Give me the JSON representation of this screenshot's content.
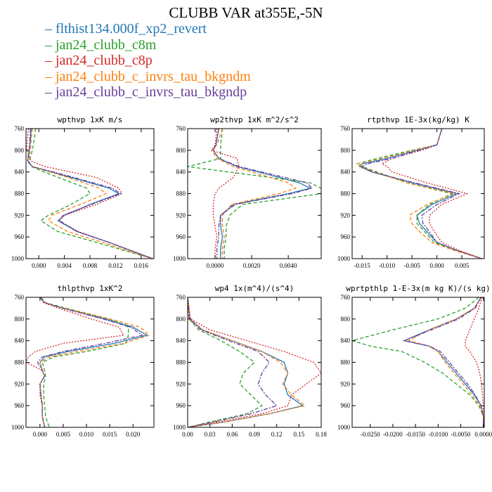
{
  "title": "CLUBB VAR at355E,-5N",
  "legend": [
    {
      "label": "flthist134.000f_xp2_revert",
      "color": "#1f77b4",
      "dash": "solid"
    },
    {
      "label": "jan24_clubb_c8m",
      "color": "#2ca02c",
      "dash": "dashed"
    },
    {
      "label": "jan24_clubb_c8p",
      "color": "#d62728",
      "dash": "dotted"
    },
    {
      "label": "jan24_clubb_c_invrs_tau_bkgndm",
      "color": "#ff7f0e",
      "dash": "dashed"
    },
    {
      "label": "jan24_clubb_c_invrs_tau_bkgndp",
      "color": "#6a3d9a",
      "dash": "dashdot"
    }
  ],
  "chart_data": [
    {
      "type": "line",
      "title": "wpthvp  1xK m/s",
      "xlim": [
        -0.002,
        0.018
      ],
      "ylim": [
        760,
        1000
      ],
      "y_inverted": true,
      "xticks": [
        "0.000",
        "0.004",
        "0.008",
        "0.012",
        "0.016"
      ],
      "xtick_values": [
        0,
        0.004,
        0.008,
        0.012,
        0.016
      ],
      "yticks": [
        760,
        800,
        840,
        880,
        920,
        960,
        1000
      ],
      "y": [
        760,
        780,
        800,
        820,
        830,
        850,
        870,
        880,
        900,
        920,
        930,
        950,
        970,
        1000
      ],
      "series": [
        {
          "name": "flthist134.000f_xp2_revert",
          "values": [
            -0.0012,
            -0.0013,
            -0.0015,
            -0.0017,
            -0.001,
            0.005,
            0.011,
            0.0125,
            0.008,
            0.004,
            0.003,
            0.006,
            0.011,
            0.0178
          ]
        },
        {
          "name": "jan24_clubb_c8m",
          "values": [
            -0.0005,
            -0.0007,
            -0.001,
            -0.0015,
            -0.0012,
            0.003,
            0.0075,
            0.008,
            0.005,
            0.0015,
            0.0003,
            0.003,
            0.009,
            0.0178
          ]
        },
        {
          "name": "jan24_clubb_c8p",
          "values": [
            -0.0016,
            -0.0018,
            -0.0019,
            -0.0012,
            0.001,
            0.009,
            0.0125,
            0.013,
            0.009,
            0.004,
            0.0032,
            0.0062,
            0.011,
            0.0178
          ]
        },
        {
          "name": "jan24_clubb_c_invrs_tau_bkgndm",
          "values": [
            -0.001,
            -0.0012,
            -0.0013,
            -0.0017,
            -0.001,
            0.0045,
            0.0095,
            0.0105,
            0.0065,
            0.002,
            0.0015,
            0.0045,
            0.01,
            0.0178
          ]
        },
        {
          "name": "jan24_clubb_c_invrs_tau_bkgndp",
          "values": [
            -0.0013,
            -0.0014,
            -0.0015,
            -0.0018,
            -0.001,
            0.0055,
            0.0115,
            0.0128,
            0.0082,
            0.0038,
            0.0032,
            0.006,
            0.011,
            0.0178
          ]
        }
      ]
    },
    {
      "type": "line",
      "title": "wp2thvp  1xK m^2/s^2",
      "xlim": [
        -0.0015,
        0.0058
      ],
      "ylim": [
        760,
        1000
      ],
      "y_inverted": true,
      "xticks": [
        "0.0000",
        "0.0020",
        "0.0040"
      ],
      "xtick_values": [
        0,
        0.002,
        0.004
      ],
      "yticks": [
        760,
        800,
        840,
        880,
        920,
        960,
        1000
      ],
      "y": [
        760,
        790,
        800,
        815,
        830,
        850,
        860,
        870,
        880,
        900,
        920,
        940,
        960,
        980,
        1000
      ],
      "series": [
        {
          "name": "flthist134.000f_xp2_revert",
          "values": [
            0.0002,
            5e-05,
            -0.0001,
            0.0002,
            0.0012,
            0.0035,
            0.0046,
            0.0052,
            0.004,
            0.001,
            0.0003,
            0.0003,
            0.0004,
            0.0003,
            0.0003
          ]
        },
        {
          "name": "jan24_clubb_c8m",
          "values": [
            0.0004,
            0.0003,
            0.0003,
            0.0003,
            -0.0015,
            0.003,
            0.0052,
            0.0058,
            0.0058,
            0.0015,
            0.0008,
            0.0006,
            0.0006,
            0.0005,
            0.0005
          ]
        },
        {
          "name": "jan24_clubb_c8p",
          "values": [
            0.0001,
            0.0,
            -0.0002,
            0.0012,
            0.0013,
            0.001,
            0.0006,
            0.0002,
            0.0,
            -0.0001,
            -0.0001,
            0.0,
            0.0001,
            0.0,
            0.0
          ]
        },
        {
          "name": "jan24_clubb_c_invrs_tau_bkgndm",
          "values": [
            0.0004,
            0.0001,
            -0.0002,
            0.0001,
            0.001,
            0.003,
            0.004,
            0.0044,
            0.0035,
            0.0009,
            0.0004,
            0.0004,
            0.0005,
            0.0004,
            0.0004
          ]
        },
        {
          "name": "jan24_clubb_c_invrs_tau_bkgndp",
          "values": [
            0.0002,
            5e-05,
            -0.0001,
            0.0002,
            0.0013,
            0.0038,
            0.005,
            0.0053,
            0.0042,
            0.0011,
            0.0003,
            0.0002,
            0.0002,
            0.0001,
            0.0001
          ]
        }
      ]
    },
    {
      "type": "line",
      "title": "rtpthvp  1E-3x(kg/kg) K",
      "xlim": [
        -0.017,
        0.0095
      ],
      "ylim": [
        760,
        1000
      ],
      "y_inverted": true,
      "xticks": [
        "-0.015",
        "-0.010",
        "-0.005",
        "0.000",
        "0.005"
      ],
      "xtick_values": [
        -0.015,
        -0.01,
        -0.005,
        0,
        0.005
      ],
      "yticks": [
        760,
        800,
        840,
        880,
        920,
        960,
        1000
      ],
      "y": [
        760,
        790,
        800,
        815,
        825,
        830,
        840,
        860,
        880,
        900,
        920,
        935,
        950,
        970,
        985,
        1000
      ],
      "series": [
        {
          "name": "flthist134.000f_xp2_revert",
          "values": [
            0.001,
            0.0,
            -0.004,
            -0.01,
            -0.015,
            -0.0155,
            -0.013,
            -0.005,
            0.004,
            -0.001,
            -0.004,
            -0.0035,
            -0.002,
            0.0,
            0.004,
            0.009
          ]
        },
        {
          "name": "jan24_clubb_c8m",
          "values": [
            0.001,
            0.0,
            -0.005,
            -0.012,
            -0.016,
            -0.015,
            -0.012,
            -0.006,
            0.003,
            -0.0015,
            -0.004,
            -0.004,
            -0.0025,
            -0.0005,
            0.004,
            0.009
          ]
        },
        {
          "name": "jan24_clubb_c8p",
          "values": [
            0.001,
            0.0,
            -0.003,
            -0.009,
            -0.011,
            -0.01,
            -0.009,
            -0.002,
            0.006,
            0.001,
            -0.0015,
            -0.0015,
            -0.0005,
            0.001,
            0.0045,
            0.009
          ]
        },
        {
          "name": "jan24_clubb_c_invrs_tau_bkgndm",
          "values": [
            0.001,
            0.0,
            -0.0045,
            -0.011,
            -0.016,
            -0.0155,
            -0.0125,
            -0.006,
            0.0035,
            -0.002,
            -0.0055,
            -0.005,
            -0.0035,
            -0.001,
            0.0035,
            0.009
          ]
        },
        {
          "name": "jan24_clubb_c_invrs_tau_bkgndp",
          "values": [
            0.001,
            0.0,
            -0.0035,
            -0.009,
            -0.014,
            -0.015,
            -0.013,
            -0.0045,
            0.0045,
            0.0,
            -0.003,
            -0.0028,
            -0.0015,
            0.0,
            0.004,
            0.009
          ]
        }
      ]
    },
    {
      "type": "line",
      "title": "thlpthvp  1xK^2",
      "xlim": [
        -0.003,
        0.0245
      ],
      "ylim": [
        760,
        1000
      ],
      "y_inverted": true,
      "xticks": [
        "0.000",
        "0.005",
        "0.010",
        "0.015",
        "0.020"
      ],
      "xtick_values": [
        0,
        0.005,
        0.01,
        0.015,
        0.02
      ],
      "yticks": [
        760,
        800,
        840,
        880,
        920,
        960,
        1000
      ],
      "y": [
        760,
        770,
        780,
        800,
        815,
        830,
        845,
        860,
        870,
        880,
        895,
        905,
        920,
        940,
        960,
        980,
        1000
      ],
      "series": [
        {
          "name": "flthist134.000f_xp2_revert",
          "values": [
            0.0,
            0.001,
            0.005,
            0.014,
            0.02,
            0.023,
            0.016,
            0.006,
            0.001,
            0.0,
            0.0005,
            0.001,
            0.0,
            0.0002,
            0.0005,
            0.0005,
            0.001
          ]
        },
        {
          "name": "jan24_clubb_c8m",
          "values": [
            0.0002,
            0.0012,
            0.0055,
            0.015,
            0.019,
            0.019,
            0.0185,
            0.01,
            0.003,
            0.0005,
            0.001,
            0.0012,
            0.0008,
            0.0008,
            0.001,
            0.0012,
            0.002
          ]
        },
        {
          "name": "jan24_clubb_c8p",
          "values": [
            0.0,
            0.0008,
            0.004,
            0.011,
            0.017,
            0.018,
            0.005,
            -0.001,
            -0.0025,
            -0.003,
            0.0005,
            0.001,
            0.0,
            0.0,
            0.0005,
            0.0005,
            0.001
          ]
        },
        {
          "name": "jan24_clubb_c_invrs_tau_bkgndm",
          "values": [
            0.0,
            0.001,
            0.005,
            0.015,
            0.0215,
            0.0235,
            0.018,
            0.008,
            0.002,
            0.0,
            0.0005,
            0.001,
            0.0,
            0.0002,
            0.0005,
            0.0005,
            0.001
          ]
        },
        {
          "name": "jan24_clubb_c_invrs_tau_bkgndp",
          "values": [
            0.0,
            0.001,
            0.0048,
            0.0135,
            0.0195,
            0.022,
            0.014,
            0.005,
            0.0005,
            -0.0005,
            0.0005,
            0.001,
            0.0,
            0.0002,
            0.0005,
            0.0005,
            0.001
          ]
        }
      ]
    },
    {
      "type": "line",
      "title": "wp4  1x(m^4)/(s^4)",
      "xlim": [
        0,
        0.18
      ],
      "ylim": [
        760,
        1000
      ],
      "y_inverted": true,
      "xticks": [
        "0.00",
        "0.03",
        "0.06",
        "0.09",
        "0.12",
        "0.15",
        "0.18"
      ],
      "xtick_values": [
        0,
        0.03,
        0.06,
        0.09,
        0.12,
        0.15,
        0.18
      ],
      "yticks": [
        760,
        800,
        840,
        880,
        920,
        960,
        1000
      ],
      "y": [
        760,
        800,
        820,
        840,
        860,
        880,
        900,
        920,
        940,
        960,
        975,
        990,
        1000
      ],
      "series": [
        {
          "name": "flthist134.000f_xp2_revert",
          "values": [
            0.0,
            0.003,
            0.02,
            0.06,
            0.1,
            0.13,
            0.135,
            0.13,
            0.135,
            0.155,
            0.11,
            0.05,
            0.0
          ]
        },
        {
          "name": "jan24_clubb_c8m",
          "values": [
            0.0,
            0.002,
            0.015,
            0.045,
            0.07,
            0.09,
            0.075,
            0.07,
            0.085,
            0.1,
            0.08,
            0.03,
            0.0
          ]
        },
        {
          "name": "jan24_clubb_c8p",
          "values": [
            0.0,
            0.004,
            0.03,
            0.08,
            0.13,
            0.17,
            0.18,
            0.16,
            0.14,
            0.135,
            0.1,
            0.04,
            0.0
          ]
        },
        {
          "name": "jan24_clubb_c_invrs_tau_bkgndm",
          "values": [
            0.0,
            0.003,
            0.02,
            0.06,
            0.1,
            0.125,
            0.135,
            0.128,
            0.14,
            0.158,
            0.11,
            0.05,
            0.0
          ]
        },
        {
          "name": "jan24_clubb_c_invrs_tau_bkgndp",
          "values": [
            0.0,
            0.002,
            0.018,
            0.055,
            0.095,
            0.11,
            0.1,
            0.095,
            0.105,
            0.12,
            0.085,
            0.035,
            0.0
          ]
        }
      ]
    },
    {
      "type": "line",
      "title": "wprtpthlp  1-E-3x(m kg K)/(s kg)",
      "xlim": [
        -0.029,
        0.0002
      ],
      "ylim": [
        760,
        1000
      ],
      "y_inverted": true,
      "xticks": [
        "-0.0250",
        "-0.0200",
        "-0.0150",
        "-0.0100",
        "-0.0050",
        "0.0000"
      ],
      "xtick_values": [
        -0.025,
        -0.02,
        -0.015,
        -0.01,
        -0.005,
        0
      ],
      "yticks": [
        760,
        800,
        840,
        880,
        920,
        960,
        1000
      ],
      "y": [
        760,
        780,
        800,
        820,
        840,
        850,
        860,
        880,
        900,
        920,
        940,
        960,
        980,
        1000
      ],
      "series": [
        {
          "name": "flthist134.000f_xp2_revert",
          "values": [
            -0.0005,
            -0.002,
            -0.006,
            -0.012,
            -0.0175,
            -0.012,
            -0.01,
            -0.008,
            -0.006,
            -0.004,
            -0.002,
            -0.0005,
            0.0,
            0.0
          ]
        },
        {
          "name": "jan24_clubb_c8m",
          "values": [
            -0.001,
            -0.004,
            -0.01,
            -0.02,
            -0.029,
            -0.025,
            -0.018,
            -0.013,
            -0.009,
            -0.006,
            -0.003,
            -0.001,
            0.0,
            0.0
          ]
        },
        {
          "name": "jan24_clubb_c8p",
          "values": [
            -0.0003,
            -0.001,
            -0.002,
            -0.003,
            -0.004,
            -0.004,
            -0.003,
            -0.0015,
            -0.0008,
            -0.0004,
            -0.0002,
            0.0,
            0.0,
            0.0
          ]
        },
        {
          "name": "jan24_clubb_c_invrs_tau_bkgndm",
          "values": [
            -0.0005,
            -0.002,
            -0.006,
            -0.012,
            -0.0165,
            -0.012,
            -0.01,
            -0.0085,
            -0.0065,
            -0.0045,
            -0.0025,
            -0.0008,
            0.0,
            0.0
          ]
        },
        {
          "name": "jan24_clubb_c_invrs_tau_bkgndp",
          "values": [
            -0.0005,
            -0.0018,
            -0.0055,
            -0.0115,
            -0.0175,
            -0.012,
            -0.0095,
            -0.0075,
            -0.0055,
            -0.0035,
            -0.0018,
            -0.0005,
            0.0,
            0.0
          ]
        }
      ]
    }
  ]
}
